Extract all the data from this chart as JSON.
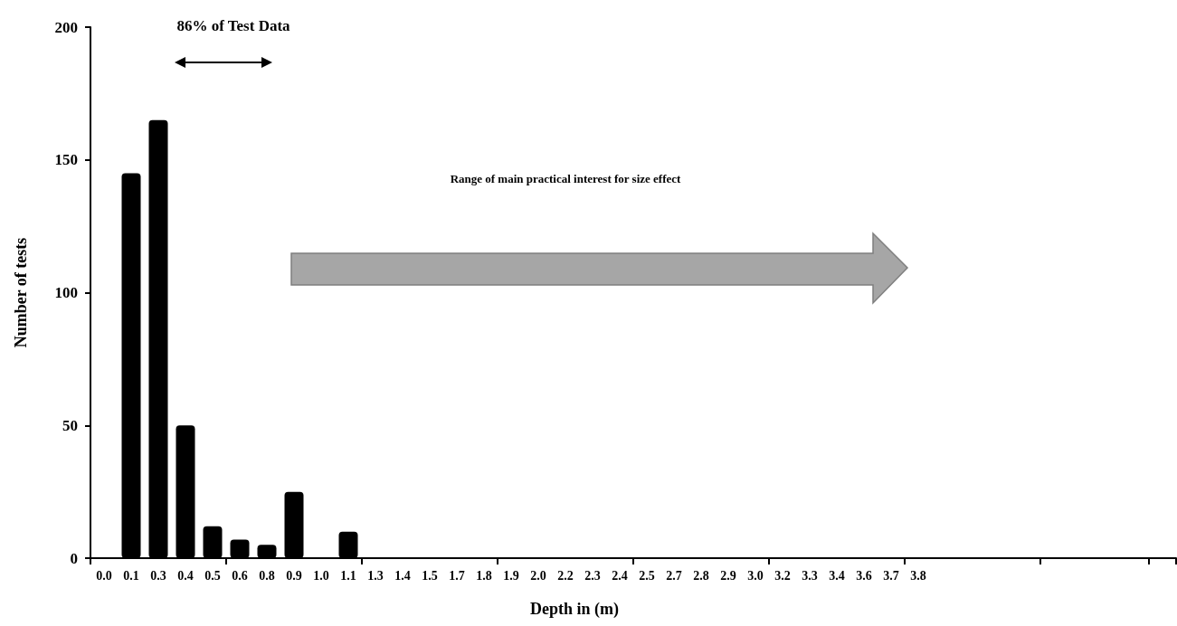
{
  "chart_data": {
    "type": "bar",
    "xlabel": "Depth in (m)",
    "ylabel": "Number of tests",
    "categories": [
      "0.0",
      "0.1",
      "0.3",
      "0.4",
      "0.5",
      "0.6",
      "0.8",
      "0.9",
      "1.0",
      "1.1",
      "1.3",
      "1.4",
      "1.5",
      "1.7",
      "1.8",
      "1.9",
      "2.0",
      "2.2",
      "2.3",
      "2.4",
      "2.5",
      "2.7",
      "2.8",
      "2.9",
      "3.0",
      "3.2",
      "3.3",
      "3.4",
      "3.6",
      "3.7",
      "3.8",
      null,
      null,
      null,
      null,
      null,
      null,
      null,
      null,
      null
    ],
    "values": [
      0,
      145,
      165,
      50,
      12,
      7,
      5,
      25,
      0,
      10,
      0,
      0,
      0,
      0,
      0,
      0,
      0,
      0,
      0,
      0,
      0,
      0,
      0,
      0,
      0,
      0,
      0,
      0,
      0,
      0,
      0,
      null,
      null,
      null,
      null,
      null,
      null,
      null,
      null,
      null
    ],
    "color": "#000000",
    "ylim": [
      0,
      200
    ],
    "yticks": [
      0,
      50,
      100,
      150,
      200
    ],
    "grid": false,
    "annotations": [
      "86% of Test Data",
      "Range of main practical interest for size effect"
    ]
  }
}
